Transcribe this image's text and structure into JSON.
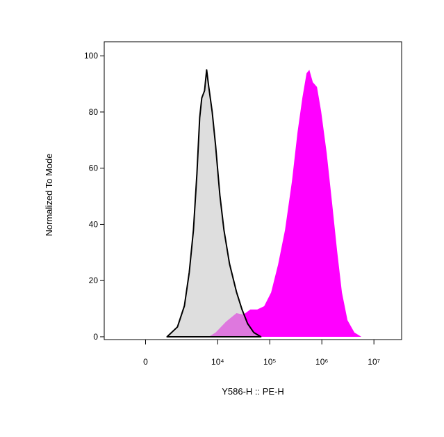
{
  "chart_data": {
    "type": "histogram-overlay",
    "x_label": "Y586-H :: PE-H",
    "y_label": "Normalized To Mode",
    "xscale": "biexponential",
    "xlim": [
      -2500,
      34000000
    ],
    "xticks": [
      0,
      {
        "value": 10000,
        "label": "10⁴"
      },
      {
        "value": 100000,
        "label": "10⁵"
      },
      {
        "value": 1000000,
        "label": "10⁶"
      },
      {
        "value": 10000000,
        "label": "10⁷"
      }
    ],
    "ylim": [
      -1,
      105
    ],
    "yticks": [
      0,
      20,
      40,
      60,
      80,
      100
    ],
    "series": [
      {
        "color": "#ff00ff",
        "x": [
          6710,
          9130,
          14480,
          22960,
          31200,
          42400,
          57700,
          78300,
          106200,
          144500,
          196500,
          267000,
          341000,
          423000,
          509000,
          575000,
          671000,
          806000,
          970000,
          1239000,
          1584000,
          1963000,
          2433000,
          3110000,
          4227000,
          5747000
        ],
        "values": [
          0,
          1.5,
          5.4,
          8.4,
          7.9,
          9.7,
          9.7,
          10.9,
          15.8,
          25.7,
          38,
          55.4,
          72.8,
          85.1,
          93.8,
          95,
          90.6,
          88.9,
          80.2,
          65.3,
          47,
          30.7,
          15.8,
          5.9,
          1.5,
          0
        ]
      },
      {
        "color": "#c8c8c8",
        "x": [
          907,
          1590,
          2230,
          2790,
          3380,
          3960,
          4490,
          4920,
          5580,
          6110,
          6710,
          7830,
          9130,
          10990,
          13200,
          16900,
          22960,
          29300,
          37500,
          49500,
          67400
        ],
        "values": [
          0,
          3.5,
          11,
          23,
          38,
          58,
          78,
          85,
          87.6,
          95,
          89,
          80,
          68,
          50.5,
          38,
          26,
          16,
          9.7,
          4.7,
          1.5,
          0
        ]
      }
    ]
  }
}
